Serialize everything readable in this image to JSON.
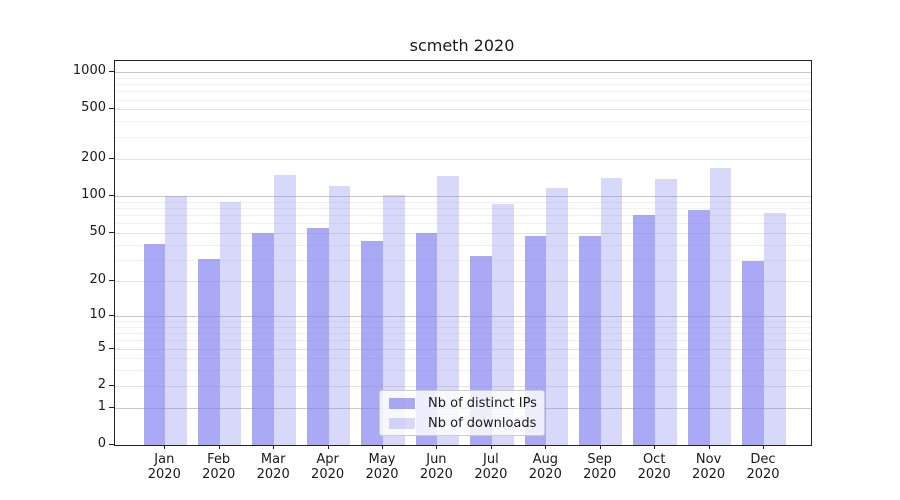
{
  "title": "scmeth 2020",
  "accent_colors": {
    "bar_dark": "rgba(125,125,240,0.66)",
    "bar_light": "rgba(125,125,240,0.30)",
    "grid_major": "#c9c9c9",
    "grid_labeled": "#e3e3e3",
    "grid_minor": "#f1f1f1",
    "spine": "#222222"
  },
  "chart_data": {
    "type": "bar",
    "title": "scmeth 2020",
    "categories": [
      "Jan",
      "Feb",
      "Mar",
      "Apr",
      "May",
      "Jun",
      "Jul",
      "Aug",
      "Sep",
      "Oct",
      "Nov",
      "Dec"
    ],
    "category_year": "2020",
    "series": [
      {
        "name": "Nb of distinct IPs",
        "color": "rgba(125,125,240,0.66)",
        "values": [
          40,
          30,
          50,
          54,
          43,
          50,
          32,
          47,
          47,
          69,
          76,
          29
        ]
      },
      {
        "name": "Nb of downloads",
        "color": "rgba(125,125,240,0.30)",
        "values": [
          100,
          88,
          146,
          120,
          101,
          145,
          85,
          116,
          138,
          136,
          166,
          72
        ]
      }
    ],
    "yscale": "log1p",
    "ylabel": "",
    "xlabel": "",
    "yticks": [
      0,
      1,
      2,
      5,
      10,
      20,
      50,
      100,
      200,
      500,
      1000
    ],
    "yticks_minor": [
      3,
      4,
      6,
      7,
      8,
      9,
      30,
      40,
      60,
      70,
      80,
      90,
      300,
      400,
      600,
      700,
      800,
      900
    ],
    "ylim": [
      0,
      1230
    ],
    "grid": true,
    "legend_position": "lower center"
  }
}
